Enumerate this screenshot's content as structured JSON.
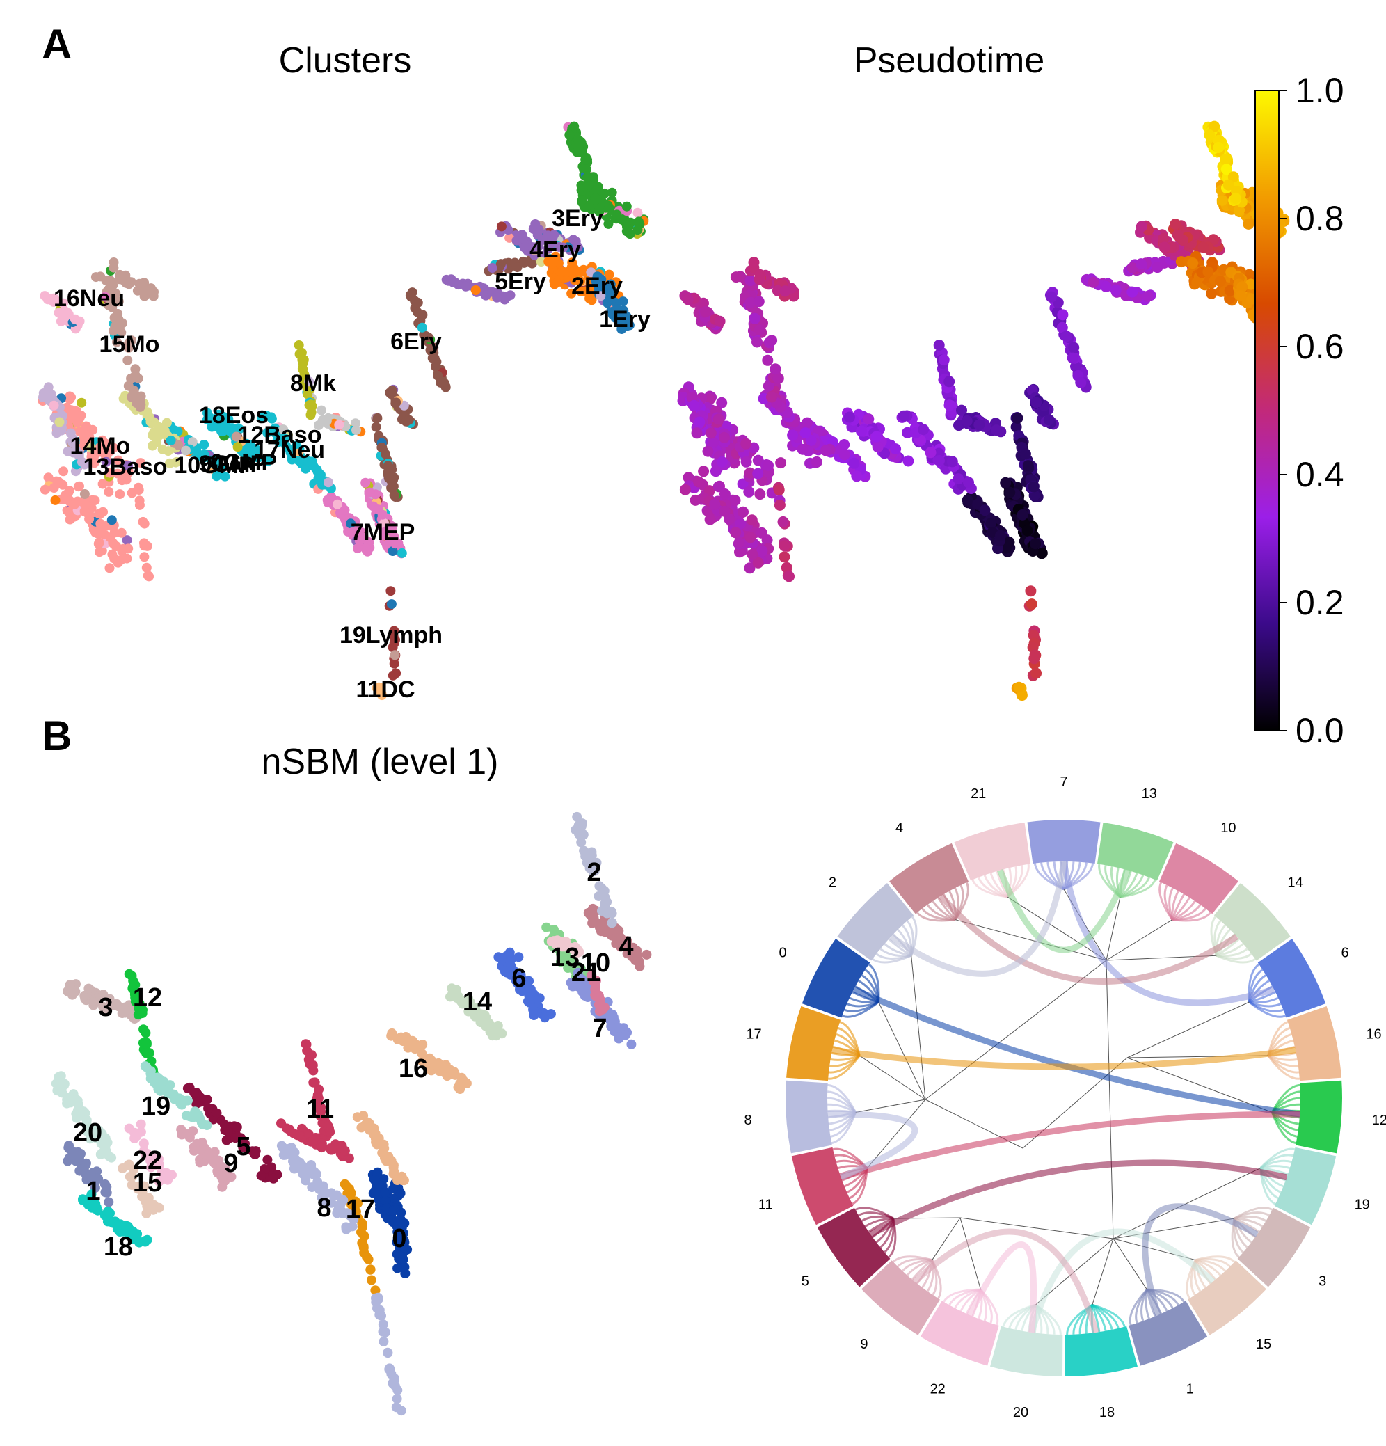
{
  "panels": {
    "a": {
      "letter": "A"
    },
    "b": {
      "letter": "B"
    }
  },
  "clusters": {
    "title": "Clusters",
    "labels": [
      {
        "id": "3Ery",
        "text": "3Ery",
        "color": "#2ca02c"
      },
      {
        "id": "4Ery",
        "text": "4Ery",
        "color": "#9467bd"
      },
      {
        "id": "5Ery",
        "text": "5Ery",
        "color": "#9467bd"
      },
      {
        "id": "2Ery",
        "text": "2Ery",
        "color": "#ff7f0e"
      },
      {
        "id": "1Ery",
        "text": "1Ery",
        "color": "#1f77b4"
      },
      {
        "id": "6Ery",
        "text": "6Ery",
        "color": "#8c564b"
      },
      {
        "id": "16Neu",
        "text": "16Neu",
        "color": "#f7b6d2"
      },
      {
        "id": "15Mo",
        "text": "15Mo",
        "color": "#c49c94"
      },
      {
        "id": "8Mk",
        "text": "8Mk",
        "color": "#bcbd22"
      },
      {
        "id": "18Eos",
        "text": "18Eos",
        "color": "#dbdb8d"
      },
      {
        "id": "12Baso",
        "text": "12Baso",
        "color": "#17becf"
      },
      {
        "id": "17Neu",
        "text": "17Neu",
        "color": "#c7c7c7"
      },
      {
        "id": "14Mo",
        "text": "14Mo",
        "color": "#c5b0d5"
      },
      {
        "id": "13Baso",
        "text": "13Baso",
        "color": "#ff9896"
      },
      {
        "id": "10GMP",
        "text": "10GMP",
        "color": "#17becf"
      },
      {
        "id": "9GMP",
        "text": "9GMP",
        "color": "#17becf"
      },
      {
        "id": "0GMP",
        "text": "0GMP",
        "color": "#1f77b4"
      },
      {
        "id": "7MEP",
        "text": "7MEP",
        "color": "#e377c2"
      },
      {
        "id": "19Lymph",
        "text": "19Lymph",
        "color": "#9e3a3a"
      },
      {
        "id": "11DC",
        "text": "11DC",
        "color": "#ffbb78"
      }
    ]
  },
  "pseudotime": {
    "title": "Pseudotime",
    "colorbar": {
      "ticks": [
        "0.0",
        "0.2",
        "0.4",
        "0.6",
        "0.8",
        "1.0"
      ],
      "min": 0.0,
      "max": 1.0,
      "stops": [
        "#000000",
        "#3b0a8a",
        "#9b1fe8",
        "#c2297a",
        "#d84a00",
        "#f29c00",
        "#fdf800"
      ]
    }
  },
  "nsbm": {
    "title": "nSBM (level 1)",
    "groups": [
      {
        "id": "0",
        "color": "#0a3fa8"
      },
      {
        "id": "1",
        "color": "#7c86b8"
      },
      {
        "id": "2",
        "color": "#b8bcd6"
      },
      {
        "id": "3",
        "color": "#cdb3b3"
      },
      {
        "id": "4",
        "color": "#c27e8a"
      },
      {
        "id": "5",
        "color": "#8a0f3f"
      },
      {
        "id": "6",
        "color": "#4a6edc"
      },
      {
        "id": "7",
        "color": "#8a94dc"
      },
      {
        "id": "8",
        "color": "#b0b6dc"
      },
      {
        "id": "9",
        "color": "#d9a3b3"
      },
      {
        "id": "10",
        "color": "#d97a9a"
      },
      {
        "id": "11",
        "color": "#c8375e"
      },
      {
        "id": "12",
        "color": "#12c43c"
      },
      {
        "id": "13",
        "color": "#86d48e"
      },
      {
        "id": "14",
        "color": "#c8dcc4"
      },
      {
        "id": "15",
        "color": "#e6c8b8"
      },
      {
        "id": "16",
        "color": "#ecb48a"
      },
      {
        "id": "17",
        "color": "#e8940c"
      },
      {
        "id": "18",
        "color": "#12ccc0"
      },
      {
        "id": "19",
        "color": "#9cdcd0"
      },
      {
        "id": "20",
        "color": "#c8e4dc"
      },
      {
        "id": "21",
        "color": "#f0c8d0"
      },
      {
        "id": "22",
        "color": "#f4bcd8"
      }
    ]
  },
  "circle": {
    "order": [
      "7",
      "13",
      "10",
      "14",
      "6",
      "16",
      "12",
      "19",
      "3",
      "15",
      "1",
      "18",
      "20",
      "22",
      "9",
      "5",
      "11",
      "8",
      "17",
      "0",
      "2",
      "4",
      "21"
    ]
  }
}
